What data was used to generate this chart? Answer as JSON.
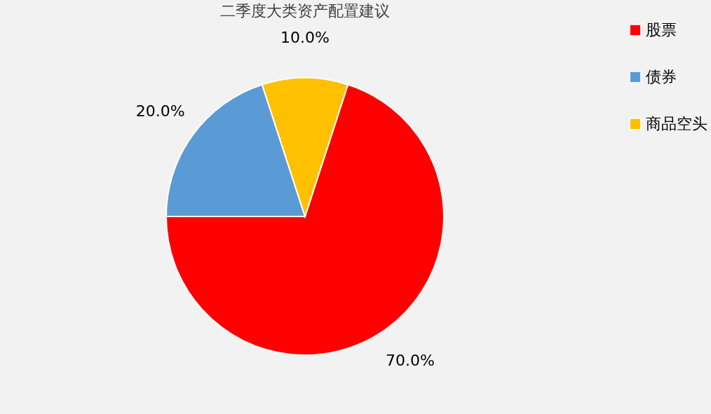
{
  "chart_data": {
    "type": "pie",
    "title": "二季度大类资产配置建议",
    "categories": [
      "股票",
      "债券",
      "商品空头"
    ],
    "values": [
      70,
      20,
      10
    ],
    "colors": [
      "#ff0000",
      "#5b9bd5",
      "#ffc000"
    ],
    "value_labels": [
      "70.0%",
      "20.0%",
      "10.0%"
    ],
    "legend": "right"
  }
}
